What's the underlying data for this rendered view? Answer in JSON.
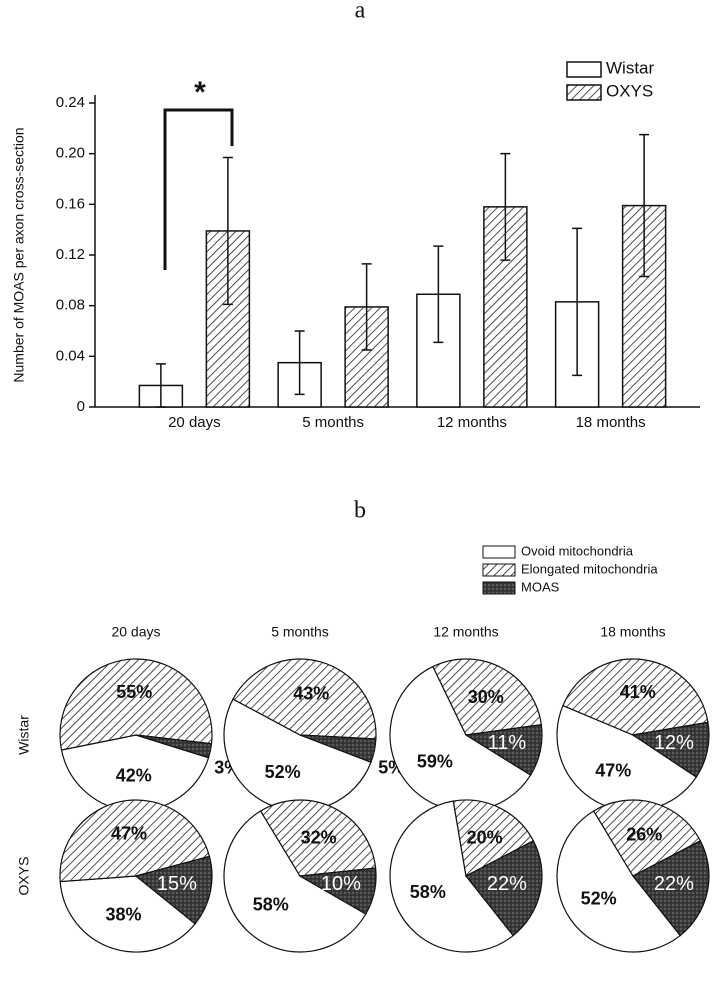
{
  "chart_data": [
    {
      "type": "bar",
      "title": "a",
      "y_label": "Number of MOAS per axon cross-section",
      "categories": [
        "20 days",
        "5 months",
        "12 months",
        "18 months"
      ],
      "series": [
        {
          "name": "Wistar",
          "fill": "white",
          "values": [
            0.017,
            0.035,
            0.089,
            0.083
          ],
          "errors": [
            0.017,
            0.025,
            0.038,
            0.058
          ]
        },
        {
          "name": "OXYS",
          "fill": "hatch",
          "values": [
            0.139,
            0.079,
            0.158,
            0.159
          ],
          "errors": [
            0.058,
            0.034,
            0.042,
            0.056
          ]
        }
      ],
      "ylim": [
        0,
        0.24
      ],
      "yticks": [
        0,
        0.04,
        0.08,
        0.12,
        0.16,
        {
          "value": 0.2,
          "label": "0.20"
        },
        0.24
      ],
      "annotation": "*",
      "legend": "upper right"
    },
    {
      "type": "pie",
      "title": "b",
      "labels": [
        "Ovoid mitochondria",
        "Elongated mitochondria",
        "MOAS"
      ],
      "fills": [
        "white",
        "hatch",
        "crosshatch"
      ],
      "columns": [
        "20 days",
        "5 months",
        "12 months",
        "18 months"
      ],
      "rows": [
        {
          "name": "Wistar",
          "pies": [
            {
              "values": [
                42,
                55,
                3
              ],
              "value_labels": [
                "42%",
                "55%",
                "3%"
              ]
            },
            {
              "values": [
                52,
                43,
                5
              ],
              "value_labels": [
                "52%",
                "43%",
                "5%"
              ]
            },
            {
              "values": [
                59,
                30,
                11
              ],
              "value_labels": [
                "59%",
                "30%",
                "11%"
              ]
            },
            {
              "values": [
                47,
                41,
                12
              ],
              "value_labels": [
                "47%",
                "41%",
                "12%"
              ]
            }
          ]
        },
        {
          "name": "OXYS",
          "pies": [
            {
              "values": [
                38,
                47,
                15
              ],
              "value_labels": [
                "38%",
                "47%",
                "15%"
              ]
            },
            {
              "values": [
                58,
                32,
                10
              ],
              "value_labels": [
                "58%",
                "32%",
                "10%"
              ]
            },
            {
              "values": [
                58,
                20,
                22
              ],
              "value_labels": [
                "58%",
                "20%",
                "22%"
              ]
            },
            {
              "values": [
                52,
                26,
                22
              ],
              "value_labels": [
                "52%",
                "26%",
                "22%"
              ]
            }
          ]
        }
      ],
      "legend": "upper right"
    }
  ]
}
